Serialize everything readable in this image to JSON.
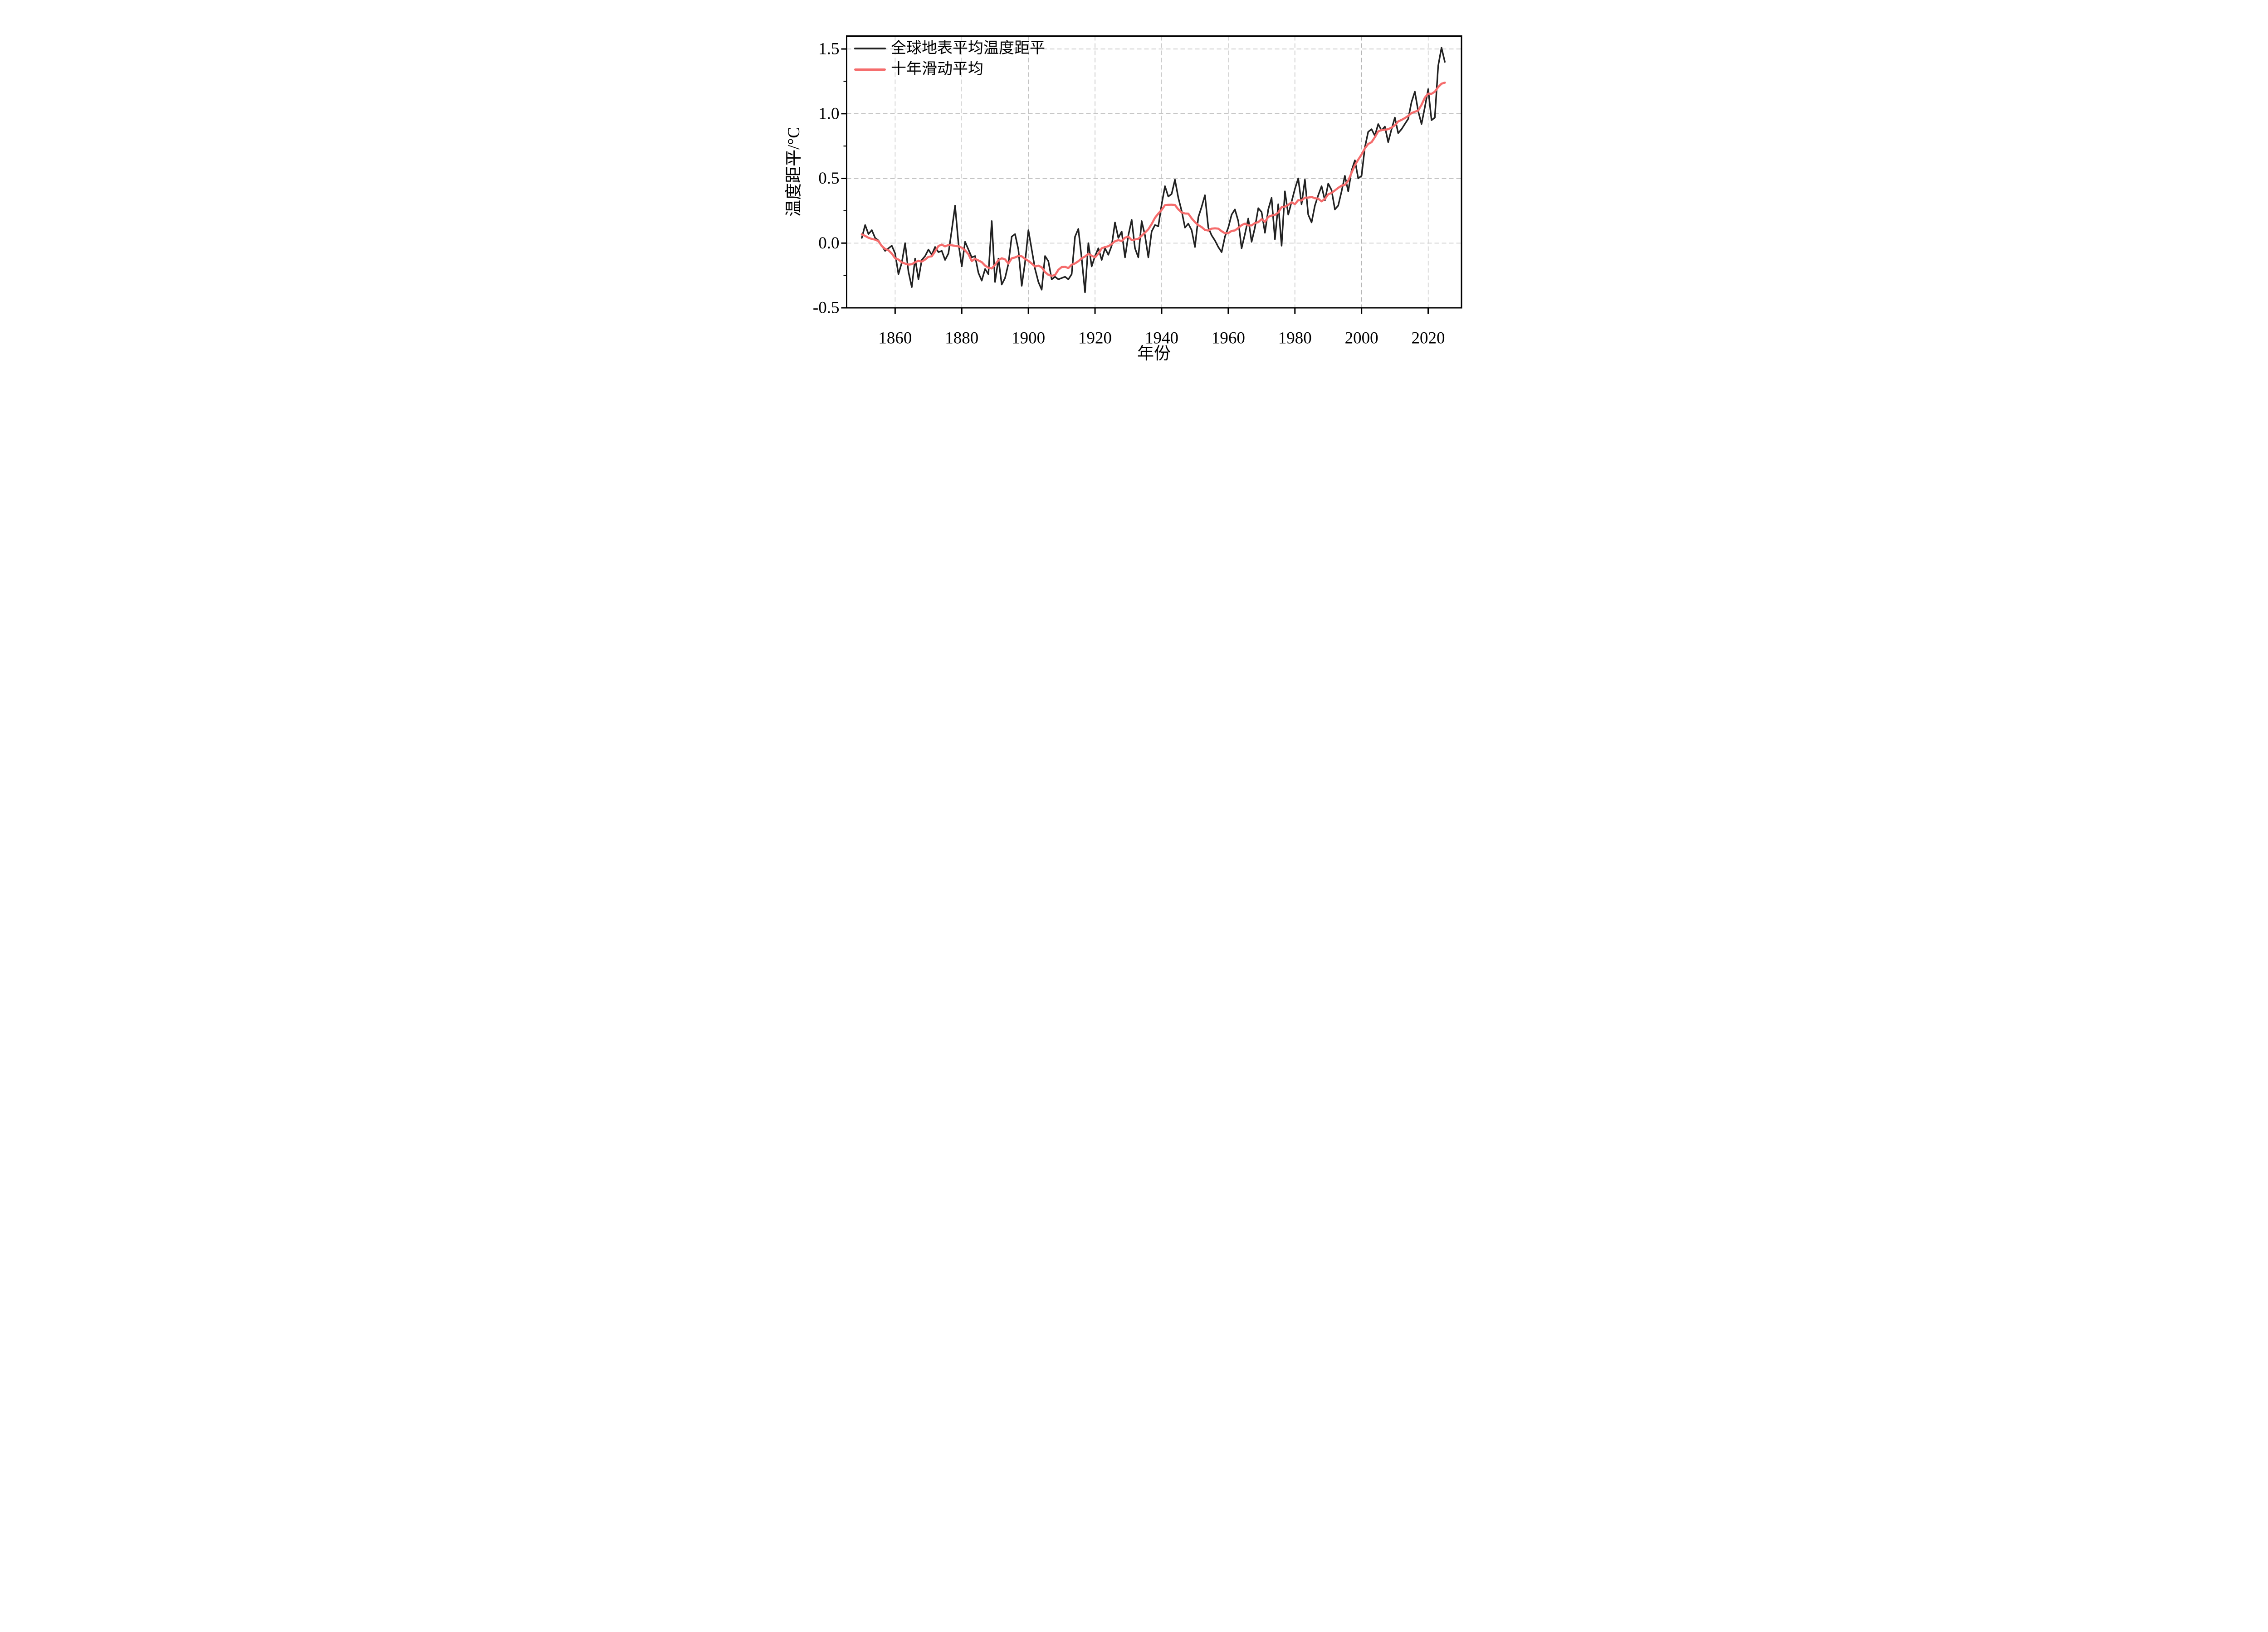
{
  "chart_data": {
    "type": "line",
    "title": "",
    "xlabel": "年份",
    "ylabel": "温度距平/°C",
    "x_years": {
      "start": 1850,
      "end": 2025,
      "step": 1
    },
    "xlim": [
      1845.45,
      2030
    ],
    "ylim": [
      -0.5,
      1.6
    ],
    "xticks": [
      1860,
      1880,
      1900,
      1920,
      1940,
      1960,
      1980,
      2000,
      2020
    ],
    "xticklabels": [
      "1860",
      "1880",
      "1900",
      "1920",
      "1940",
      "1960",
      "1980",
      "2000",
      "2020"
    ],
    "yticks": [
      -0.5,
      0.0,
      0.5,
      1.0,
      1.5
    ],
    "yticklabels": [
      "-0.5",
      "0.0",
      "0.5",
      "1.0",
      "1.5"
    ],
    "y_minor_ticks": [
      -0.25,
      0.25,
      0.75,
      1.25
    ],
    "grid": {
      "show": true,
      "style": "dashed",
      "color": "#b5b5b5",
      "on_ticks": "major"
    },
    "legend_position": "upper-left-inside",
    "series": [
      {
        "name": "全球地表平均温度距平",
        "color": "#212121",
        "line_width": 3.4,
        "values": [
          0.04,
          0.14,
          0.07,
          0.1,
          0.04,
          0.02,
          -0.02,
          -0.06,
          -0.04,
          -0.02,
          -0.08,
          -0.24,
          -0.15,
          0.0,
          -0.22,
          -0.34,
          -0.12,
          -0.28,
          -0.13,
          -0.1,
          -0.05,
          -0.09,
          -0.03,
          -0.07,
          -0.06,
          -0.13,
          -0.08,
          0.1,
          0.29,
          0.0,
          -0.18,
          0.01,
          -0.05,
          -0.11,
          -0.1,
          -0.23,
          -0.29,
          -0.2,
          -0.24,
          0.17,
          -0.3,
          -0.12,
          -0.32,
          -0.27,
          -0.16,
          0.05,
          0.07,
          -0.05,
          -0.33,
          -0.15,
          0.1,
          -0.05,
          -0.2,
          -0.3,
          -0.36,
          -0.1,
          -0.14,
          -0.28,
          -0.26,
          -0.28,
          -0.27,
          -0.26,
          -0.28,
          -0.24,
          0.05,
          0.11,
          -0.12,
          -0.38,
          0.0,
          -0.18,
          -0.1,
          -0.04,
          -0.13,
          -0.04,
          -0.09,
          -0.02,
          0.16,
          0.04,
          0.09,
          -0.11,
          0.06,
          0.18,
          -0.04,
          -0.11,
          0.17,
          0.06,
          -0.11,
          0.09,
          0.14,
          0.13,
          0.3,
          0.44,
          0.36,
          0.38,
          0.49,
          0.35,
          0.25,
          0.12,
          0.15,
          0.1,
          -0.03,
          0.2,
          0.28,
          0.37,
          0.12,
          0.06,
          0.02,
          -0.03,
          -0.07,
          0.05,
          0.12,
          0.22,
          0.26,
          0.17,
          -0.04,
          0.07,
          0.19,
          0.01,
          0.12,
          0.27,
          0.24,
          0.08,
          0.26,
          0.35,
          0.03,
          0.3,
          -0.02,
          0.4,
          0.22,
          0.32,
          0.42,
          0.5,
          0.3,
          0.49,
          0.22,
          0.16,
          0.29,
          0.37,
          0.44,
          0.33,
          0.46,
          0.41,
          0.26,
          0.29,
          0.4,
          0.52,
          0.4,
          0.56,
          0.64,
          0.5,
          0.52,
          0.74,
          0.86,
          0.88,
          0.83,
          0.92,
          0.87,
          0.9,
          0.78,
          0.88,
          0.97,
          0.85,
          0.88,
          0.92,
          0.96,
          1.09,
          1.17,
          1.02,
          0.92,
          1.05,
          1.19,
          0.95,
          0.97,
          1.37,
          1.51,
          1.4
        ]
      },
      {
        "name": "十年滑动平均",
        "color": "#f56c6c",
        "line_width": 4.6,
        "derived": "centered 10-year moving average of series 0 (partial windows at the edges)"
      }
    ]
  },
  "frame": {
    "color": "#000000",
    "line_width": 3
  }
}
